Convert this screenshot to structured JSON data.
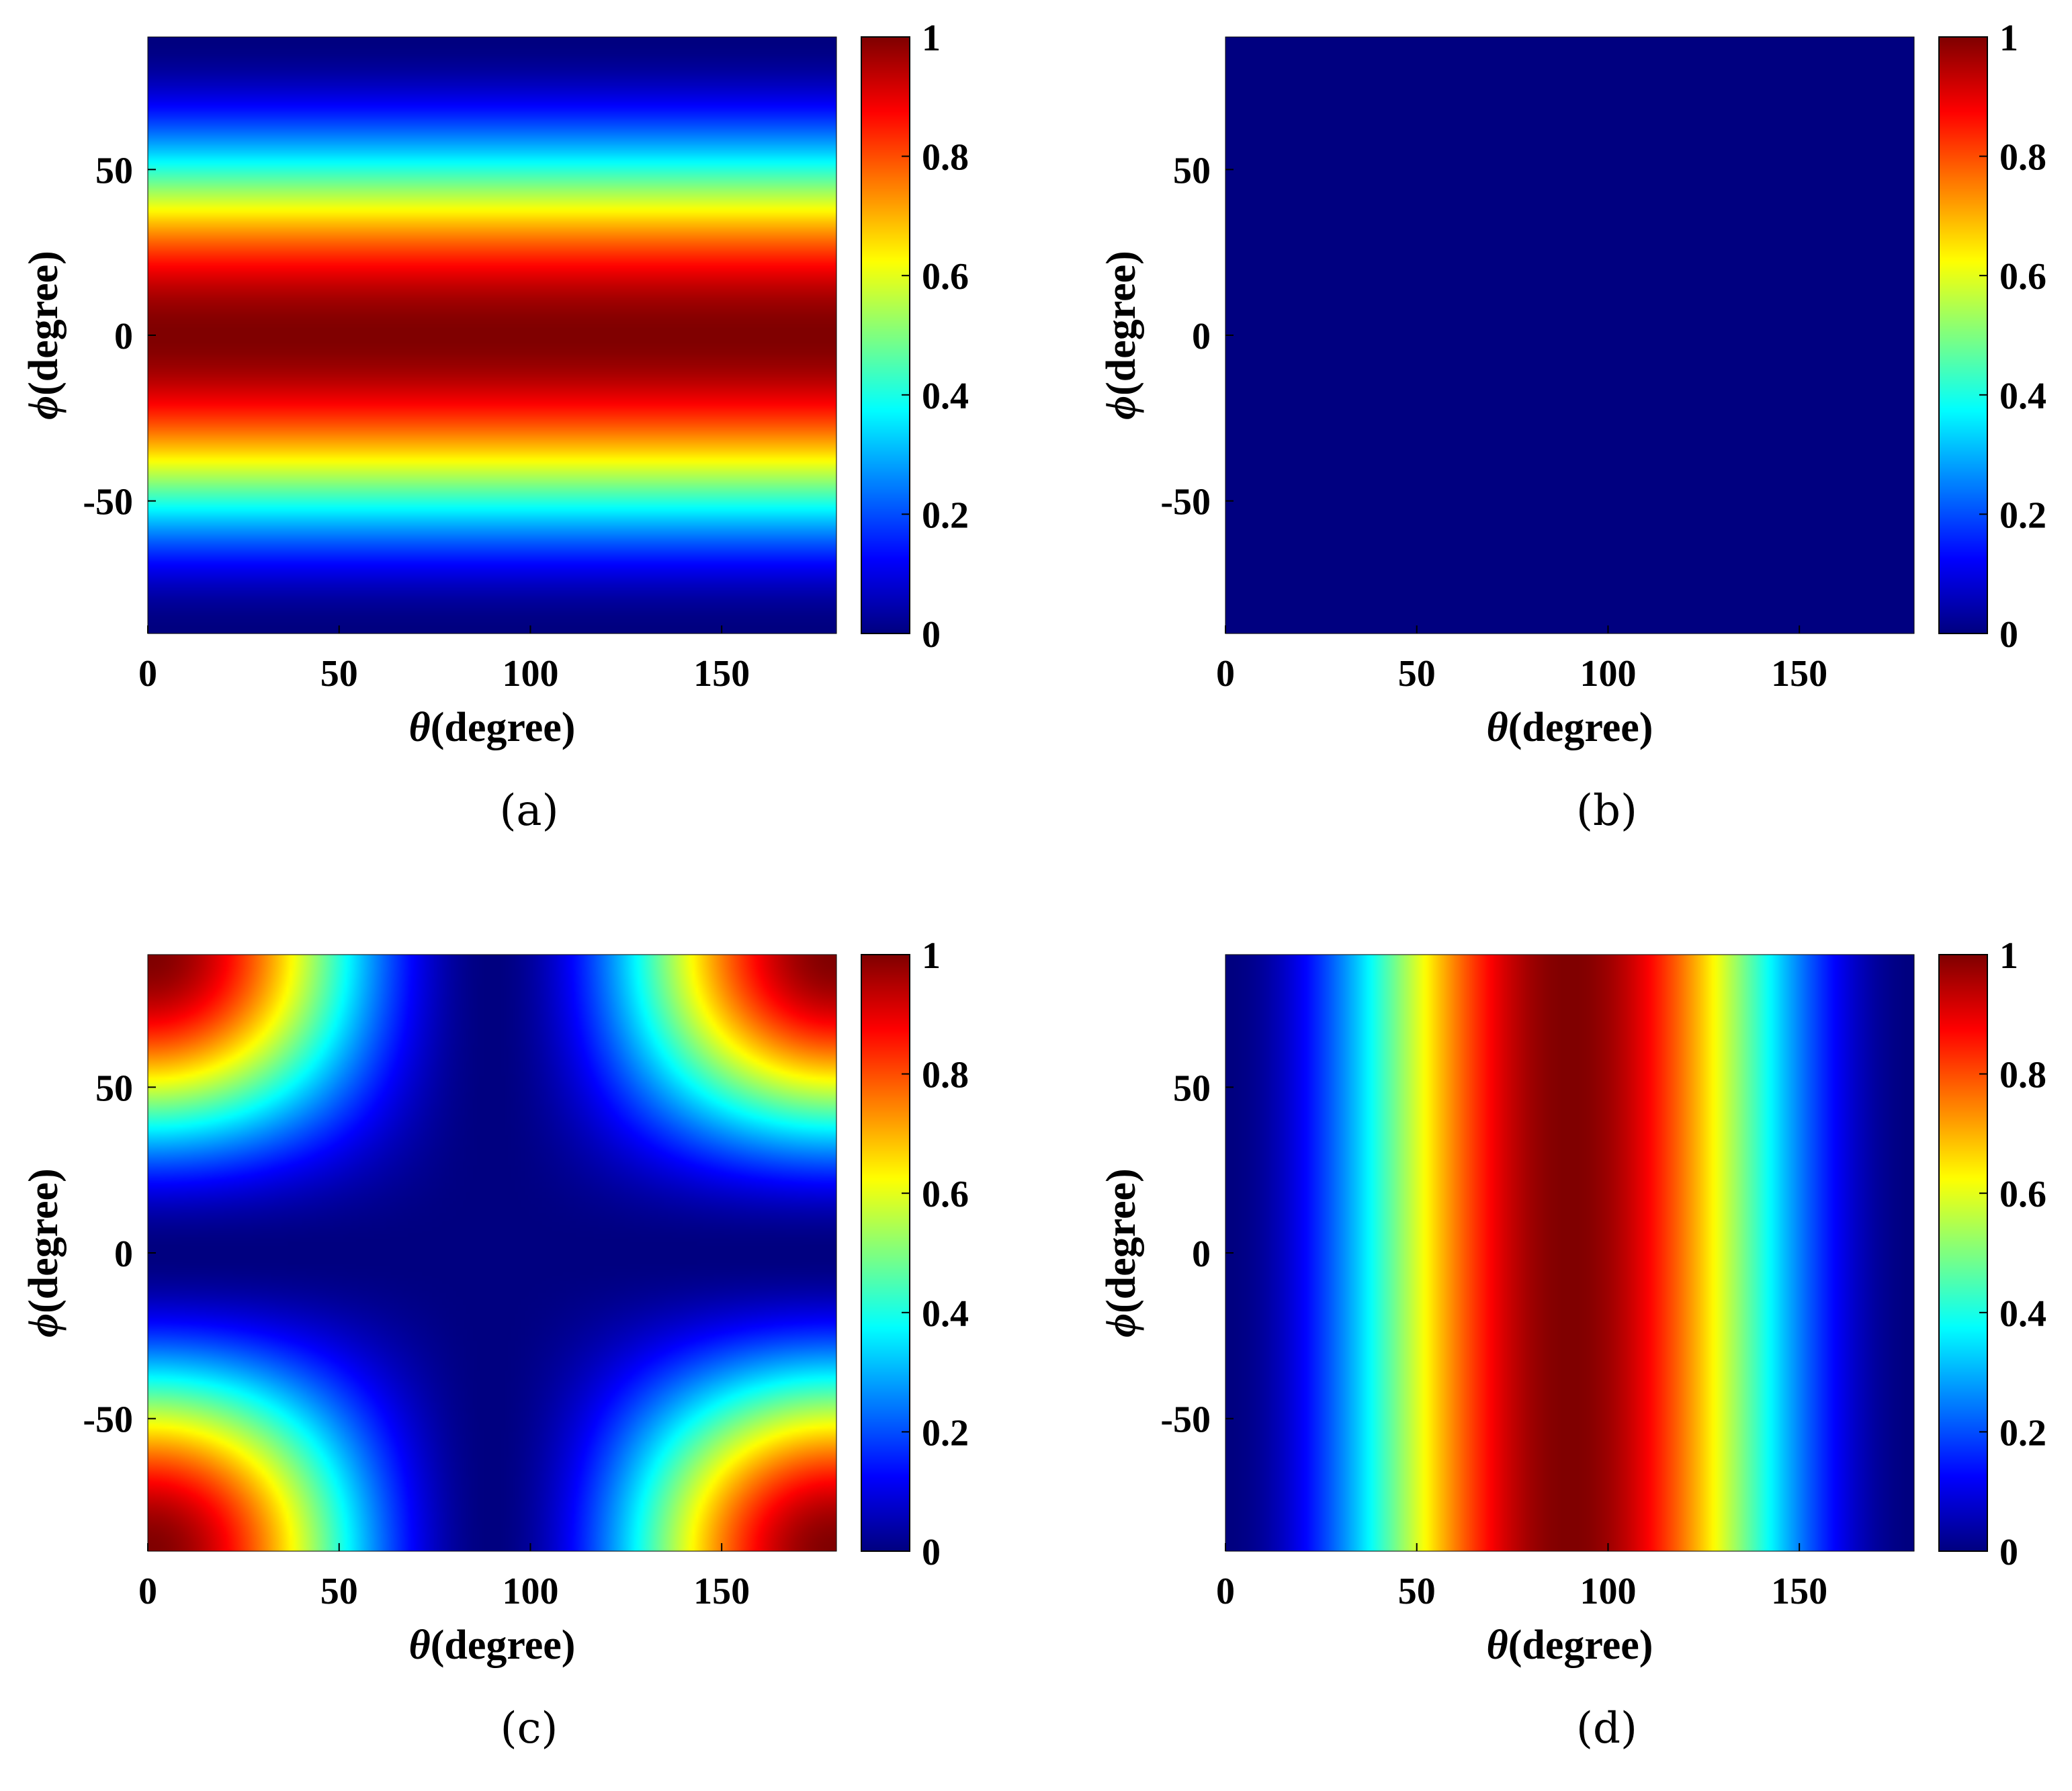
{
  "chart_data": [
    {
      "type": "heatmap",
      "panel_label": "(a)",
      "xlabel_symbol": "θ",
      "xlabel_unit": "(degree)",
      "ylabel_symbol": "ϕ",
      "ylabel_unit": "(degree)",
      "xlim": [
        0,
        180
      ],
      "ylim": [
        -90,
        90
      ],
      "xticks": [
        0,
        50,
        100,
        150
      ],
      "yticks": [
        50,
        0,
        -50
      ],
      "colorbar": {
        "range": [
          0,
          1
        ],
        "ticks": [
          "1",
          "0.8",
          "0.6",
          "0.4",
          "0.2",
          "0"
        ],
        "colormap": "jet"
      },
      "surface": "cos^2(phi)",
      "description": "Horizontal bands; maximum 1 at phi = 0, falling to 0 at phi = ±90; independent of theta"
    },
    {
      "type": "heatmap",
      "panel_label": "(b)",
      "xlabel_symbol": "θ",
      "xlabel_unit": "(degree)",
      "ylabel_symbol": "ϕ",
      "ylabel_unit": "(degree)",
      "xlim": [
        0,
        180
      ],
      "ylim": [
        -90,
        90
      ],
      "xticks": [
        0,
        50,
        100,
        150
      ],
      "yticks": [
        50,
        0,
        -50
      ],
      "colorbar": {
        "range": [
          0,
          1
        ],
        "ticks": [
          "1",
          "0.8",
          "0.6",
          "0.4",
          "0.2",
          "0"
        ],
        "colormap": "jet"
      },
      "surface": "zero",
      "description": "Uniform value 0 over the whole domain"
    },
    {
      "type": "heatmap",
      "panel_label": "(c)",
      "xlabel_symbol": "θ",
      "xlabel_unit": "(degree)",
      "ylabel_symbol": "ϕ",
      "ylabel_unit": "(degree)",
      "xlim": [
        0,
        180
      ],
      "ylim": [
        -90,
        90
      ],
      "xticks": [
        0,
        50,
        100,
        150
      ],
      "yticks": [
        50,
        0,
        -50
      ],
      "colorbar": {
        "range": [
          0,
          1
        ],
        "ticks": [
          "1",
          "0.8",
          "0.6",
          "0.4",
          "0.2",
          "0"
        ],
        "colormap": "jet"
      },
      "surface": "cos^2(theta)*sin^2(phi)",
      "description": "Value 1 at corners (theta = 0/180, phi = ±90); 0 along theta = 90 and phi = 0"
    },
    {
      "type": "heatmap",
      "panel_label": "(d)",
      "xlabel_symbol": "θ",
      "xlabel_unit": "(degree)",
      "ylabel_symbol": "ϕ",
      "ylabel_unit": "(degree)",
      "xlim": [
        0,
        180
      ],
      "ylim": [
        -90,
        90
      ],
      "xticks": [
        0,
        50,
        100,
        150
      ],
      "yticks": [
        50,
        0,
        -50
      ],
      "colorbar": {
        "range": [
          0,
          1
        ],
        "ticks": [
          "1",
          "0.8",
          "0.6",
          "0.4",
          "0.2",
          "0"
        ],
        "colormap": "jet"
      },
      "surface": "sin^2(theta)",
      "description": "Vertical bands; maximum 1 at theta = 90, falling to 0 at theta = 0 and 180; independent of phi"
    }
  ]
}
